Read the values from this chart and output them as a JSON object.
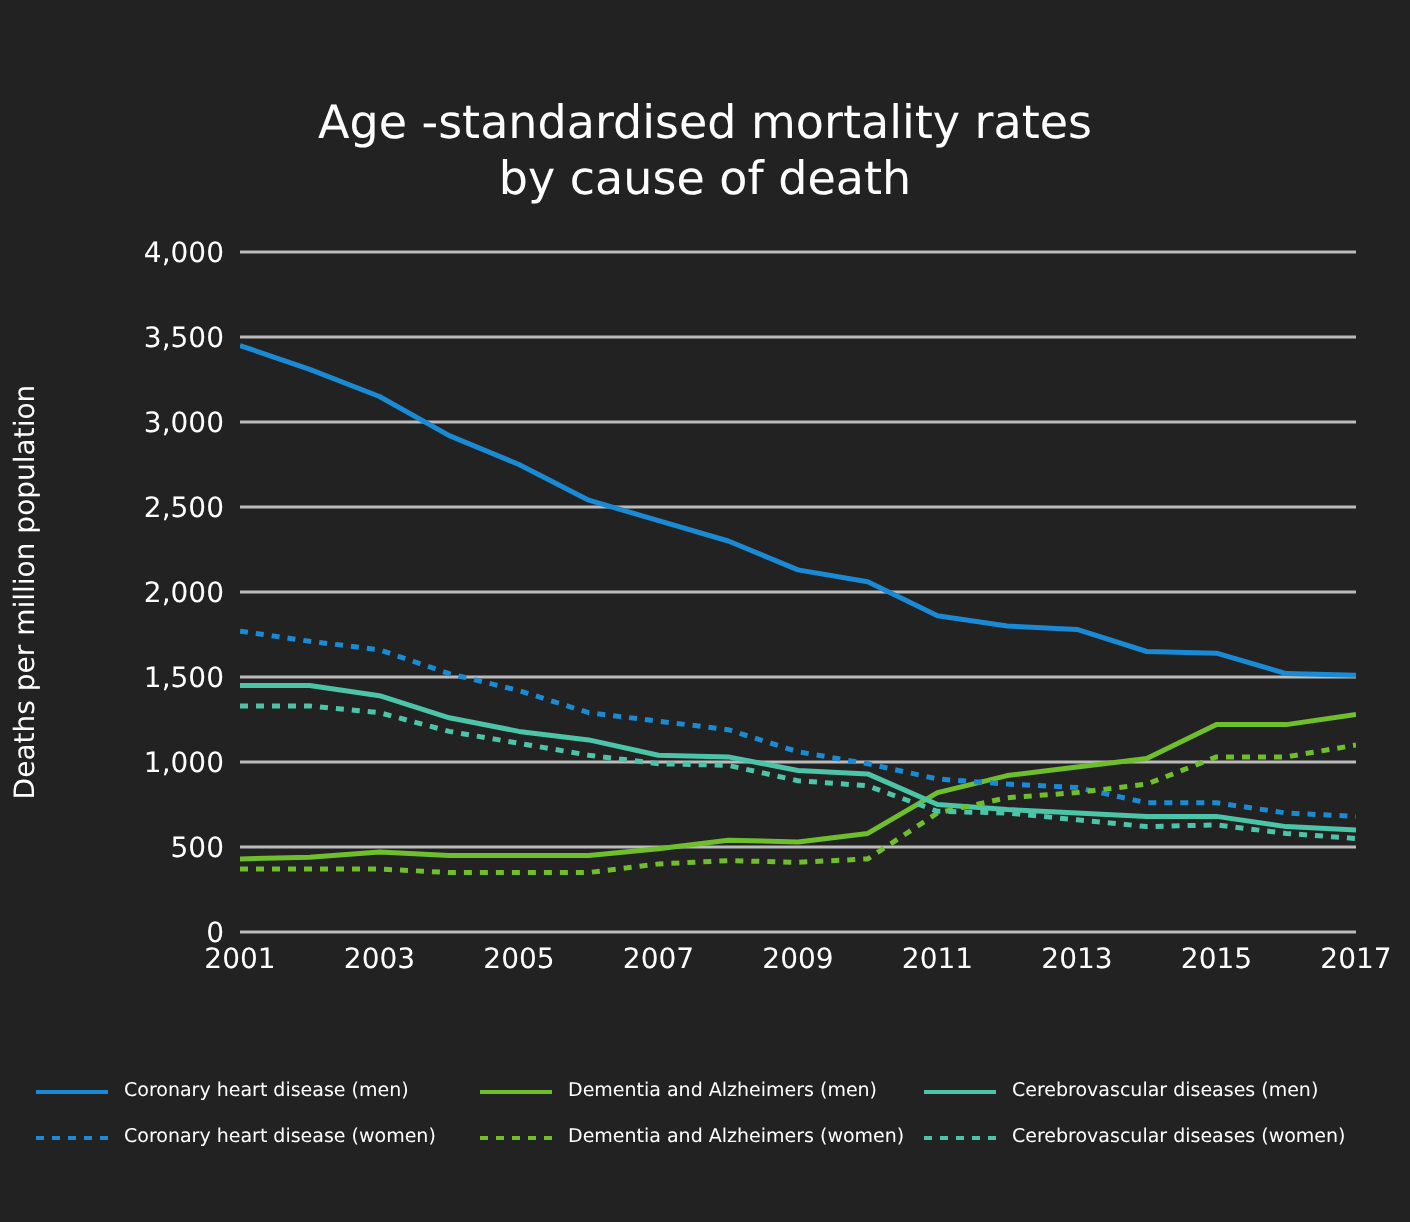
{
  "chart_data": {
    "type": "line",
    "title": "Age -standardised mortality rates\nby cause of death",
    "ylabel": "Deaths per million population",
    "x": [
      2001,
      2002,
      2003,
      2004,
      2005,
      2006,
      2007,
      2008,
      2009,
      2010,
      2011,
      2012,
      2013,
      2014,
      2015,
      2016,
      2017
    ],
    "xlim": [
      2001,
      2017
    ],
    "xticks": [
      2001,
      2003,
      2005,
      2007,
      2009,
      2011,
      2013,
      2015,
      2017
    ],
    "ylim": [
      0,
      4000
    ],
    "yticks": [
      {
        "value": 0,
        "label": "0"
      },
      {
        "value": 500,
        "label": "500"
      },
      {
        "value": 1000,
        "label": "1,000"
      },
      {
        "value": 1500,
        "label": "1,500"
      },
      {
        "value": 2000,
        "label": "2,000"
      },
      {
        "value": 2500,
        "label": "2,500"
      },
      {
        "value": 3000,
        "label": "3,000"
      },
      {
        "value": 3500,
        "label": "3,500"
      },
      {
        "value": 4000,
        "label": "4,000"
      }
    ],
    "grid": "y",
    "legend": "bottom",
    "marker": "none",
    "series": [
      {
        "name": "Coronary heart disease (men)",
        "color": "#1a8ad4",
        "line_style": "solid",
        "values": [
          3450,
          3310,
          3150,
          2920,
          2750,
          2540,
          2420,
          2300,
          2130,
          2060,
          1860,
          1800,
          1780,
          1650,
          1640,
          1520,
          1510
        ]
      },
      {
        "name": "Dementia and Alzheimers (men)",
        "color": "#6fbe2c",
        "line_style": "solid",
        "values": [
          430,
          440,
          470,
          450,
          450,
          450,
          490,
          540,
          530,
          580,
          820,
          920,
          970,
          1020,
          1220,
          1220,
          1280
        ]
      },
      {
        "name": "Cerebrovascular diseases (men)",
        "color": "#4cc4a8",
        "line_style": "solid",
        "values": [
          1450,
          1450,
          1390,
          1260,
          1180,
          1130,
          1040,
          1030,
          950,
          930,
          750,
          720,
          700,
          680,
          680,
          620,
          600
        ]
      },
      {
        "name": "Coronary heart disease (women)",
        "color": "#1a8ad4",
        "line_style": "dashed",
        "values": [
          1770,
          1710,
          1660,
          1520,
          1420,
          1290,
          1240,
          1190,
          1060,
          990,
          900,
          870,
          850,
          760,
          760,
          700,
          680
        ]
      },
      {
        "name": "Dementia and Alzheimers (women)",
        "color": "#6fbe2c",
        "line_style": "dashed",
        "values": [
          370,
          370,
          370,
          350,
          350,
          350,
          400,
          420,
          410,
          430,
          700,
          790,
          820,
          870,
          1030,
          1030,
          1100
        ]
      },
      {
        "name": "Cerebrovascular diseases (women)",
        "color": "#4cc4a8",
        "line_style": "dashed",
        "values": [
          1330,
          1330,
          1290,
          1180,
          1110,
          1040,
          990,
          980,
          890,
          860,
          710,
          700,
          660,
          620,
          630,
          580,
          550
        ]
      }
    ]
  }
}
